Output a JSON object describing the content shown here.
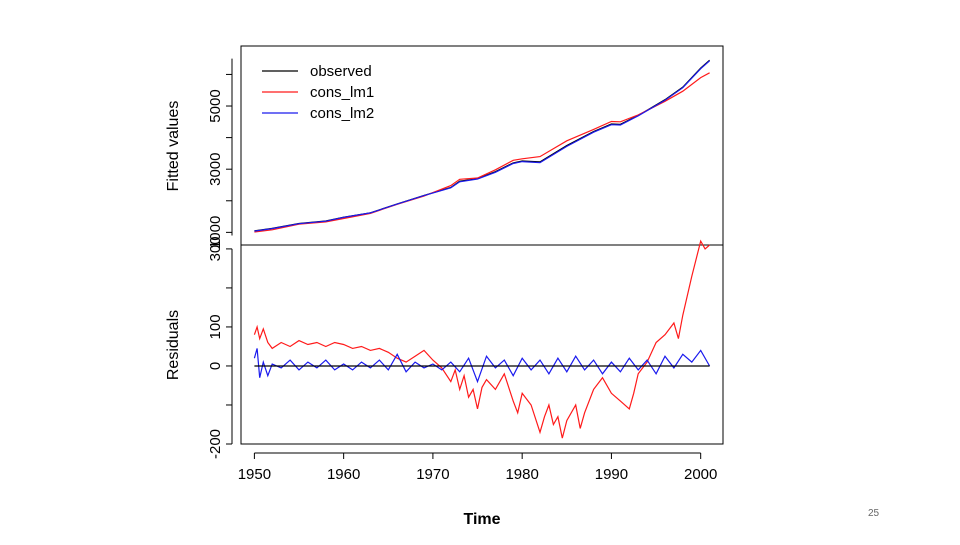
{
  "colors": {
    "observed": "#000000",
    "cons_lm1": "#ff1a1a",
    "cons_lm2": "#1a1aee"
  },
  "page_number": "25",
  "chart_data": [
    {
      "type": "line",
      "panel": "top",
      "ylabel": "Fitted values",
      "ylim": [
        600,
        6900
      ],
      "yticks": [
        1000,
        3000,
        5000
      ],
      "ytick_labels": [
        "1000",
        "3000",
        "5000"
      ],
      "legend": {
        "position": "top-left",
        "entries": [
          "observed",
          "cons_lm1",
          "cons_lm2"
        ]
      },
      "series": [
        {
          "name": "observed",
          "color_key": "observed",
          "points": [
            [
              1950,
              1050
            ],
            [
              1952,
              1130
            ],
            [
              1955,
              1280
            ],
            [
              1958,
              1360
            ],
            [
              1960,
              1480
            ],
            [
              1963,
              1620
            ],
            [
              1966,
              1900
            ],
            [
              1969,
              2170
            ],
            [
              1972,
              2420
            ],
            [
              1973,
              2620
            ],
            [
              1975,
              2700
            ],
            [
              1977,
              2920
            ],
            [
              1979,
              3200
            ],
            [
              1980,
              3260
            ],
            [
              1982,
              3230
            ],
            [
              1985,
              3750
            ],
            [
              1988,
              4190
            ],
            [
              1990,
              4430
            ],
            [
              1991,
              4420
            ],
            [
              1993,
              4700
            ],
            [
              1996,
              5200
            ],
            [
              1998,
              5600
            ],
            [
              2000,
              6200
            ],
            [
              2001,
              6450
            ]
          ]
        },
        {
          "name": "cons_lm1",
          "color_key": "cons_lm1",
          "points": [
            [
              1950,
              1010
            ],
            [
              1952,
              1080
            ],
            [
              1955,
              1260
            ],
            [
              1958,
              1330
            ],
            [
              1960,
              1440
            ],
            [
              1963,
              1600
            ],
            [
              1966,
              1890
            ],
            [
              1969,
              2150
            ],
            [
              1972,
              2480
            ],
            [
              1973,
              2680
            ],
            [
              1975,
              2720
            ],
            [
              1977,
              2980
            ],
            [
              1979,
              3280
            ],
            [
              1980,
              3330
            ],
            [
              1982,
              3400
            ],
            [
              1985,
              3900
            ],
            [
              1988,
              4260
            ],
            [
              1990,
              4510
            ],
            [
              1991,
              4500
            ],
            [
              1993,
              4720
            ],
            [
              1996,
              5150
            ],
            [
              1998,
              5470
            ],
            [
              2000,
              5900
            ],
            [
              2001,
              6050
            ]
          ]
        },
        {
          "name": "cons_lm2",
          "color_key": "cons_lm2",
          "points": [
            [
              1950,
              1040
            ],
            [
              1952,
              1120
            ],
            [
              1955,
              1275
            ],
            [
              1958,
              1355
            ],
            [
              1960,
              1475
            ],
            [
              1963,
              1615
            ],
            [
              1966,
              1895
            ],
            [
              1969,
              2165
            ],
            [
              1972,
              2410
            ],
            [
              1973,
              2600
            ],
            [
              1975,
              2690
            ],
            [
              1977,
              2900
            ],
            [
              1979,
              3180
            ],
            [
              1980,
              3240
            ],
            [
              1982,
              3210
            ],
            [
              1985,
              3720
            ],
            [
              1988,
              4170
            ],
            [
              1990,
              4410
            ],
            [
              1991,
              4400
            ],
            [
              1993,
              4690
            ],
            [
              1996,
              5180
            ],
            [
              1998,
              5580
            ],
            [
              2000,
              6180
            ],
            [
              2001,
              6430
            ]
          ]
        }
      ]
    },
    {
      "type": "line",
      "panel": "bottom",
      "ylabel": "Residuals",
      "xlabel": "Time",
      "xlim": [
        1948.5,
        2002.5
      ],
      "ylim": [
        -200,
        310
      ],
      "xticks": [
        1950,
        1960,
        1970,
        1980,
        1990,
        2000
      ],
      "xtick_labels": [
        "1950",
        "1960",
        "1970",
        "1980",
        "1990",
        "2000"
      ],
      "yticks": [
        -200,
        -100,
        0,
        100,
        200,
        300
      ],
      "ytick_labels": [
        "-200",
        "",
        "0",
        "100",
        "",
        "300"
      ],
      "zero_line": true,
      "series": [
        {
          "name": "cons_lm1",
          "color_key": "cons_lm1",
          "points": [
            [
              1950,
              80
            ],
            [
              1950.3,
              100
            ],
            [
              1950.6,
              70
            ],
            [
              1951,
              95
            ],
            [
              1951.5,
              60
            ],
            [
              1952,
              45
            ],
            [
              1953,
              60
            ],
            [
              1954,
              50
            ],
            [
              1955,
              65
            ],
            [
              1956,
              55
            ],
            [
              1957,
              60
            ],
            [
              1958,
              50
            ],
            [
              1959,
              60
            ],
            [
              1960,
              55
            ],
            [
              1961,
              45
            ],
            [
              1962,
              50
            ],
            [
              1963,
              40
            ],
            [
              1964,
              45
            ],
            [
              1965,
              35
            ],
            [
              1966,
              20
            ],
            [
              1967,
              10
            ],
            [
              1968,
              25
            ],
            [
              1969,
              40
            ],
            [
              1970,
              15
            ],
            [
              1971,
              -5
            ],
            [
              1972,
              -40
            ],
            [
              1972.5,
              -10
            ],
            [
              1973,
              -60
            ],
            [
              1973.5,
              -25
            ],
            [
              1974,
              -80
            ],
            [
              1974.5,
              -60
            ],
            [
              1975,
              -110
            ],
            [
              1975.5,
              -55
            ],
            [
              1976,
              -35
            ],
            [
              1977,
              -60
            ],
            [
              1978,
              -20
            ],
            [
              1979,
              -90
            ],
            [
              1979.5,
              -120
            ],
            [
              1980,
              -70
            ],
            [
              1981,
              -100
            ],
            [
              1982,
              -170
            ],
            [
              1982.5,
              -130
            ],
            [
              1983,
              -100
            ],
            [
              1983.5,
              -150
            ],
            [
              1984,
              -130
            ],
            [
              1984.5,
              -185
            ],
            [
              1985,
              -140
            ],
            [
              1986,
              -100
            ],
            [
              1986.5,
              -160
            ],
            [
              1987,
              -120
            ],
            [
              1988,
              -60
            ],
            [
              1989,
              -30
            ],
            [
              1990,
              -70
            ],
            [
              1991,
              -90
            ],
            [
              1992,
              -110
            ],
            [
              1992.5,
              -70
            ],
            [
              1993,
              -20
            ],
            [
              1994,
              10
            ],
            [
              1995,
              60
            ],
            [
              1996,
              80
            ],
            [
              1997,
              110
            ],
            [
              1997.5,
              70
            ],
            [
              1998,
              130
            ],
            [
              1999,
              230
            ],
            [
              2000,
              320
            ],
            [
              2000.5,
              300
            ],
            [
              2001,
              310
            ]
          ]
        },
        {
          "name": "cons_lm2",
          "color_key": "cons_lm2",
          "points": [
            [
              1950,
              20
            ],
            [
              1950.3,
              45
            ],
            [
              1950.6,
              -30
            ],
            [
              1951,
              10
            ],
            [
              1951.5,
              -25
            ],
            [
              1952,
              5
            ],
            [
              1953,
              -5
            ],
            [
              1954,
              15
            ],
            [
              1955,
              -10
            ],
            [
              1956,
              10
            ],
            [
              1957,
              -5
            ],
            [
              1958,
              15
            ],
            [
              1959,
              -10
            ],
            [
              1960,
              5
            ],
            [
              1961,
              -10
            ],
            [
              1962,
              10
            ],
            [
              1963,
              -5
            ],
            [
              1964,
              15
            ],
            [
              1965,
              -10
            ],
            [
              1966,
              30
            ],
            [
              1967,
              -15
            ],
            [
              1968,
              10
            ],
            [
              1969,
              -5
            ],
            [
              1970,
              5
            ],
            [
              1971,
              -10
            ],
            [
              1972,
              10
            ],
            [
              1973,
              -15
            ],
            [
              1974,
              20
            ],
            [
              1975,
              -40
            ],
            [
              1976,
              25
            ],
            [
              1977,
              -5
            ],
            [
              1978,
              15
            ],
            [
              1979,
              -25
            ],
            [
              1980,
              20
            ],
            [
              1981,
              -10
            ],
            [
              1982,
              15
            ],
            [
              1983,
              -20
            ],
            [
              1984,
              20
            ],
            [
              1985,
              -15
            ],
            [
              1986,
              25
            ],
            [
              1987,
              -10
            ],
            [
              1988,
              15
            ],
            [
              1989,
              -20
            ],
            [
              1990,
              10
            ],
            [
              1991,
              -15
            ],
            [
              1992,
              20
            ],
            [
              1993,
              -10
            ],
            [
              1994,
              15
            ],
            [
              1995,
              -20
            ],
            [
              1996,
              25
            ],
            [
              1997,
              -5
            ],
            [
              1998,
              30
            ],
            [
              1999,
              10
            ],
            [
              2000,
              40
            ],
            [
              2001,
              0
            ]
          ]
        },
        {
          "name": "observed",
          "color_key": "observed",
          "points": [
            [
              1950,
              0
            ],
            [
              2001,
              0
            ]
          ]
        }
      ]
    }
  ]
}
